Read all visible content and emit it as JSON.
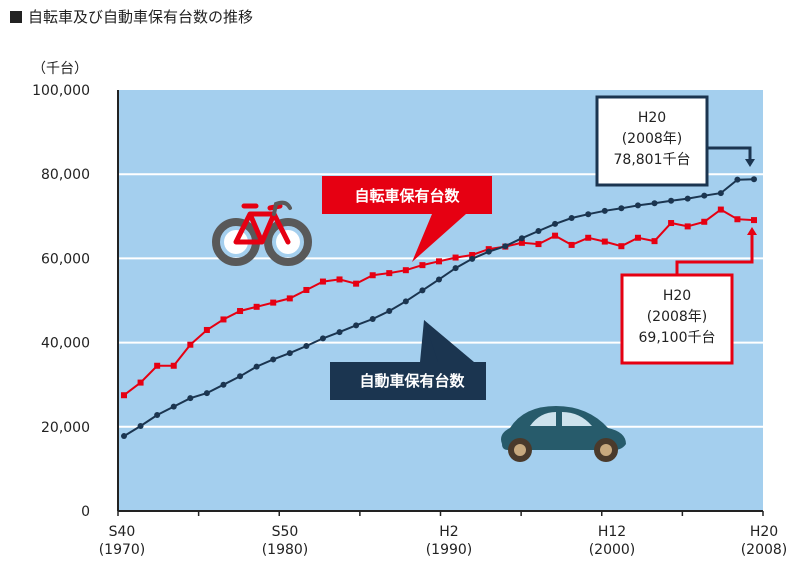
{
  "header": {
    "title": "自転車及び自動車保有台数の推移"
  },
  "chart_data": {
    "type": "line",
    "y_unit": "（千台）",
    "ylim": [
      0,
      100000
    ],
    "yticks": [
      "0",
      "20,000",
      "40,000",
      "60,000",
      "80,000",
      "100,000"
    ],
    "xlim": [
      1970,
      2008
    ],
    "xticks": [
      {
        "era": "S40",
        "year": "(1970)"
      },
      {
        "era": "S50",
        "year": "(1980)"
      },
      {
        "era": "H2",
        "year": "(1990)"
      },
      {
        "era": "H12",
        "year": "(2000)"
      },
      {
        "era": "H20",
        "year": "(2008)"
      }
    ],
    "x": [
      1970,
      1971,
      1972,
      1973,
      1974,
      1975,
      1976,
      1977,
      1978,
      1979,
      1980,
      1981,
      1982,
      1983,
      1984,
      1985,
      1986,
      1987,
      1988,
      1989,
      1990,
      1991,
      1992,
      1993,
      1994,
      1995,
      1996,
      1997,
      1998,
      1999,
      2000,
      2001,
      2002,
      2003,
      2004,
      2005,
      2006,
      2007,
      2008
    ],
    "series": [
      {
        "name": "自転車保有台数",
        "color": "#e60012",
        "values": [
          27500,
          30500,
          34500,
          34500,
          39500,
          43000,
          45500,
          47500,
          48500,
          49500,
          50500,
          52500,
          54500,
          55000,
          54000,
          56000,
          56500,
          57200,
          58400,
          59300,
          60200,
          60800,
          62200,
          62800,
          63700,
          63400,
          65400,
          63200,
          64900,
          64000,
          62900,
          64900,
          64100,
          68400,
          67600,
          68700,
          71600,
          69300,
          69100
        ]
      },
      {
        "name": "自動車保有台数",
        "color": "#1b3550",
        "values": [
          17800,
          20200,
          22800,
          24800,
          26800,
          28000,
          30000,
          32000,
          34300,
          36000,
          37500,
          39200,
          41000,
          42500,
          44100,
          45600,
          47500,
          49800,
          52400,
          55000,
          57700,
          59900,
          61600,
          62900,
          64800,
          66500,
          68200,
          69600,
          70500,
          71300,
          71900,
          72600,
          73100,
          73700,
          74200,
          74900,
          75500,
          78700,
          78801
        ]
      }
    ],
    "callouts": [
      {
        "series": "自転車保有台数",
        "text": "自転車保有台数"
      },
      {
        "series": "自動車保有台数",
        "text": "自動車保有台数"
      },
      {
        "lines": [
          "H20",
          "(2008年)",
          "78,801千台"
        ],
        "color": "#1b3550"
      },
      {
        "lines": [
          "H20",
          "(2008年)",
          "69,100千台"
        ],
        "color": "#e60012"
      }
    ],
    "plot_bg": "#a4cfee",
    "grid": true,
    "legend": "none"
  },
  "icons": {
    "bicycle": "bicycle-icon",
    "car": "car-icon"
  }
}
